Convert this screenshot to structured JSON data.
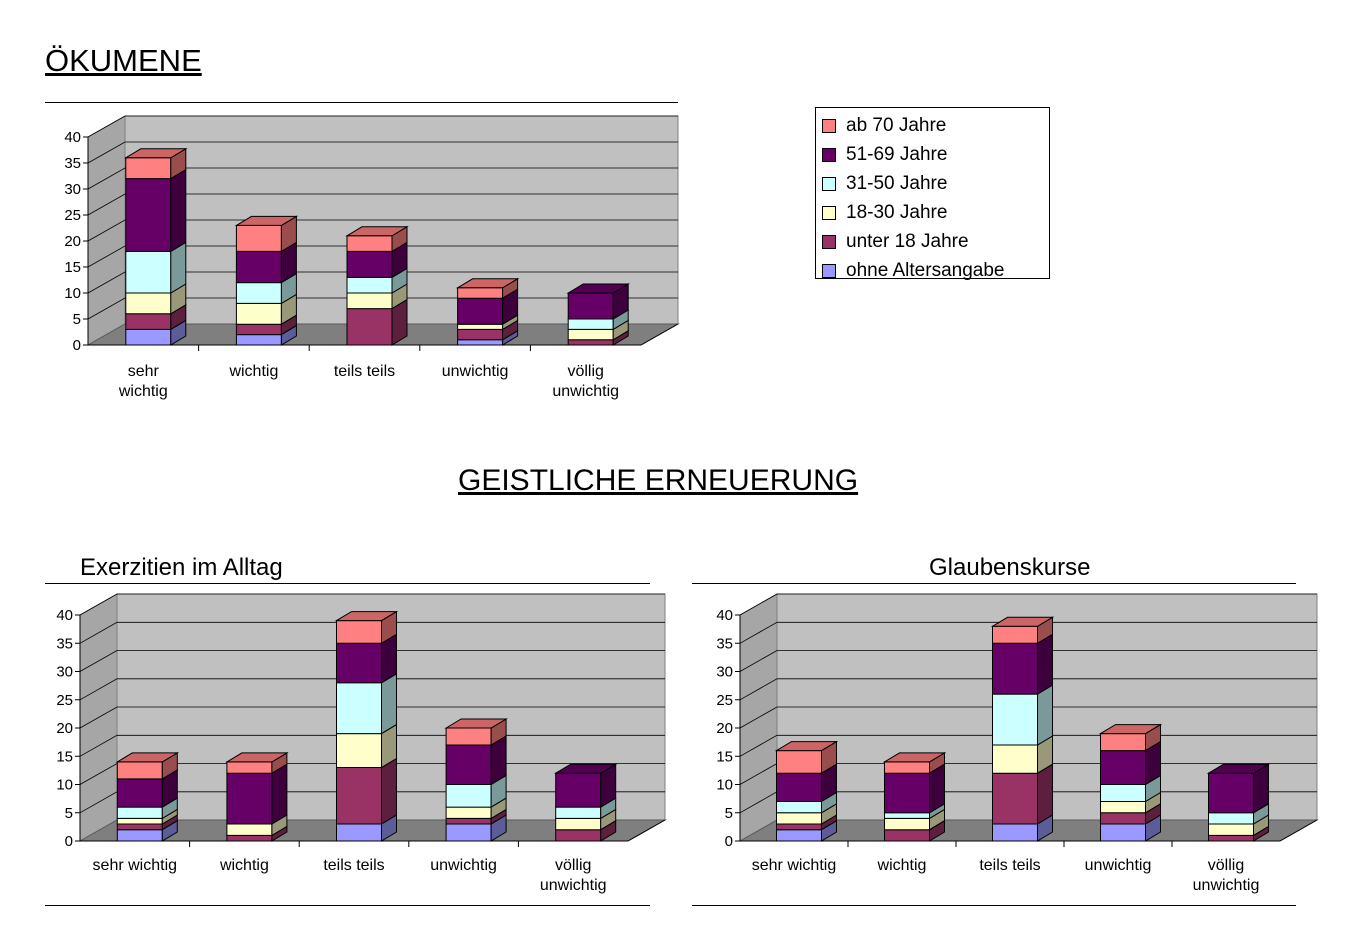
{
  "headings": {
    "oekumene": "ÖKUMENE",
    "geistliche": "GEISTLICHE ERNEUERUNG",
    "exerzitien": "Exerzitien im Alltag",
    "glaubenskurse": "Glaubenskurse"
  },
  "legend": [
    {
      "label": "ab 70 Jahre",
      "color": "#ff8080"
    },
    {
      "label": "51-69 Jahre",
      "color": "#660066"
    },
    {
      "label": "31-50 Jahre",
      "color": "#ccffff"
    },
    {
      "label": "18-30 Jahre",
      "color": "#ffffcc"
    },
    {
      "label": "unter 18 Jahre",
      "color": "#993366"
    },
    {
      "label": "ohne Altersangabe",
      "color": "#9999ff"
    }
  ],
  "chart_data": [
    {
      "type": "bar",
      "stacked": true,
      "three_d": true,
      "title": "ÖKUMENE",
      "categories": [
        [
          "sehr",
          "wichtig"
        ],
        [
          "wichtig"
        ],
        [
          "teils teils"
        ],
        [
          "unwichtig"
        ],
        [
          "völlig",
          "unwichtig"
        ]
      ],
      "ylim": [
        0,
        40
      ],
      "yticks": [
        0,
        5,
        10,
        15,
        20,
        25,
        30,
        35,
        40
      ],
      "grid": true,
      "series": [
        {
          "name": "ohne Altersangabe",
          "values": [
            3,
            2,
            0,
            1,
            0
          ]
        },
        {
          "name": "unter 18 Jahre",
          "values": [
            3,
            2,
            7,
            2,
            1
          ]
        },
        {
          "name": "18-30 Jahre",
          "values": [
            4,
            4,
            3,
            1,
            2
          ]
        },
        {
          "name": "31-50 Jahre",
          "values": [
            8,
            4,
            3,
            0,
            2
          ]
        },
        {
          "name": "51-69 Jahre",
          "values": [
            14,
            6,
            5,
            5,
            5
          ]
        },
        {
          "name": "ab 70 Jahre",
          "values": [
            4,
            5,
            3,
            2,
            0
          ]
        }
      ]
    },
    {
      "type": "bar",
      "stacked": true,
      "three_d": true,
      "title": "Exerzitien im Alltag",
      "categories": [
        [
          "sehr wichtig"
        ],
        [
          "wichtig"
        ],
        [
          "teils teils"
        ],
        [
          "unwichtig"
        ],
        [
          "völlig",
          "unwichtig"
        ]
      ],
      "ylim": [
        0,
        40
      ],
      "yticks": [
        0,
        5,
        10,
        15,
        20,
        25,
        30,
        35,
        40
      ],
      "grid": true,
      "series": [
        {
          "name": "ohne Altersangabe",
          "values": [
            2,
            0,
            3,
            3,
            0
          ]
        },
        {
          "name": "unter 18 Jahre",
          "values": [
            1,
            1,
            10,
            1,
            2
          ]
        },
        {
          "name": "18-30 Jahre",
          "values": [
            1,
            2,
            6,
            2,
            2
          ]
        },
        {
          "name": "31-50 Jahre",
          "values": [
            2,
            0,
            9,
            4,
            2
          ]
        },
        {
          "name": "51-69 Jahre",
          "values": [
            5,
            9,
            7,
            7,
            6
          ]
        },
        {
          "name": "ab 70 Jahre",
          "values": [
            3,
            2,
            4,
            3,
            0
          ]
        }
      ]
    },
    {
      "type": "bar",
      "stacked": true,
      "three_d": true,
      "title": "Glaubenskurse",
      "categories": [
        [
          "sehr wichtig"
        ],
        [
          "wichtig"
        ],
        [
          "teils teils"
        ],
        [
          "unwichtig"
        ],
        [
          "völlig",
          "unwichtig"
        ]
      ],
      "ylim": [
        0,
        40
      ],
      "yticks": [
        0,
        5,
        10,
        15,
        20,
        25,
        30,
        35,
        40
      ],
      "grid": true,
      "series": [
        {
          "name": "ohne Altersangabe",
          "values": [
            2,
            0,
            3,
            3,
            0
          ]
        },
        {
          "name": "unter 18 Jahre",
          "values": [
            1,
            2,
            9,
            2,
            1
          ]
        },
        {
          "name": "18-30 Jahre",
          "values": [
            2,
            2,
            5,
            2,
            2
          ]
        },
        {
          "name": "31-50 Jahre",
          "values": [
            2,
            1,
            9,
            3,
            2
          ]
        },
        {
          "name": "51-69 Jahre",
          "values": [
            5,
            7,
            9,
            6,
            7
          ]
        },
        {
          "name": "ab 70 Jahre",
          "values": [
            4,
            2,
            3,
            3,
            0
          ]
        }
      ]
    }
  ]
}
